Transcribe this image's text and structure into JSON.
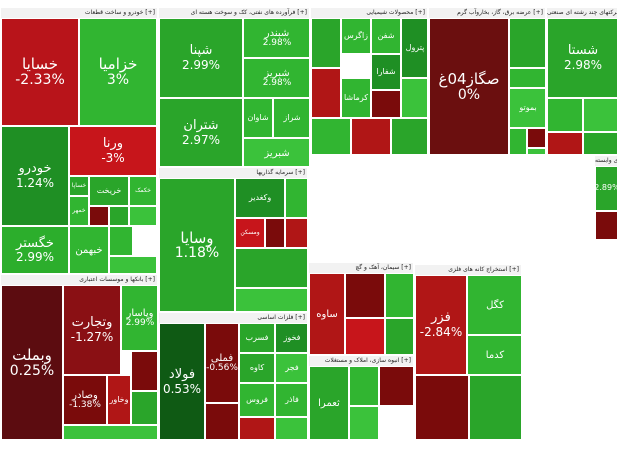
{
  "chart_data": {
    "type": "treemap",
    "title": "",
    "colors": {
      "up_strong": "#1f9e1f",
      "up_mid": "#2fb62f",
      "up_light": "#3fcb3f",
      "down_strong": "#7a0b0b",
      "down_mid": "#b01616",
      "down_light": "#d22a2a"
    },
    "sectors": [
      {
        "name": "خودرو و ساخت قطعات [+]",
        "tiles": [
          {
            "symbol": "خسایا",
            "change": "-2.33%",
            "color": "#b8141a"
          },
          {
            "symbol": "خزامیا",
            "change": "3%",
            "color": "#31b531"
          },
          {
            "symbol": "خودرو",
            "change": "1.24%",
            "color": "#1f8f24"
          },
          {
            "symbol": "ورنا",
            "change": "-3%",
            "color": "#c7151b"
          },
          {
            "symbol": "خگستر",
            "change": "2.99%",
            "color": "#2cae2c"
          },
          {
            "symbol": "خساپا",
            "change": "",
            "color": "#2aa52a"
          },
          {
            "symbol": "خریخت",
            "change": "",
            "color": "#2aa52a"
          },
          {
            "symbol": "خکمک",
            "change": "",
            "color": "#31b531"
          },
          {
            "symbol": "",
            "change": "",
            "color": "#7a0b0b"
          },
          {
            "symbol": "",
            "change": "",
            "color": "#2aa52a"
          },
          {
            "symbol": "خمهر",
            "change": "",
            "color": "#31b531"
          },
          {
            "symbol": "",
            "change": "",
            "color": "#3bc23b"
          },
          {
            "symbol": "",
            "change": "",
            "color": "#31b531"
          },
          {
            "symbol": "خبهمن",
            "change": "",
            "color": "#31b531"
          },
          {
            "symbol": "",
            "change": "",
            "color": "#3bc23b"
          }
        ]
      },
      {
        "name": "فرآورده های نفتی، کک و سوخت هسته ای [+]",
        "tiles": [
          {
            "symbol": "شپنا",
            "change": "2.99%",
            "color": "#2aa52a"
          },
          {
            "symbol": "شبندر",
            "change": "2.98%",
            "color": "#31b531"
          },
          {
            "symbol": "شبریز",
            "change": "2.98%",
            "color": "#31b531"
          },
          {
            "symbol": "شتران",
            "change": "2.97%",
            "color": "#2aa52a"
          },
          {
            "symbol": "شاوان",
            "change": "",
            "color": "#31b531"
          },
          {
            "symbol": "شراز",
            "change": "",
            "color": "#31b531"
          },
          {
            "symbol": "شبریز",
            "change": "",
            "color": "#3bc23b"
          }
        ]
      },
      {
        "name": "محصولات شیمیایی [+]",
        "tiles": [
          {
            "symbol": "",
            "change": "",
            "color": "#2aa52a"
          },
          {
            "symbol": "زاگرس",
            "change": "",
            "color": "#31b531"
          },
          {
            "symbol": "شفن",
            "change": "",
            "color": "#31b531"
          },
          {
            "symbol": "پترول",
            "change": "",
            "color": "#1f8f24"
          },
          {
            "symbol": "شفارا",
            "change": "",
            "color": "#1f8f24"
          },
          {
            "symbol": "کرماشا",
            "change": "",
            "color": "#31b531"
          },
          {
            "symbol": "",
            "change": "",
            "color": "#b01616"
          },
          {
            "symbol": "",
            "change": "",
            "color": "#7a0b0b"
          },
          {
            "symbol": "",
            "change": "",
            "color": "#3bc23b"
          },
          {
            "symbol": "",
            "change": "",
            "color": "#31b531"
          },
          {
            "symbol": "",
            "change": "",
            "color": "#b01616"
          },
          {
            "symbol": "",
            "change": "",
            "color": "#2aa52a"
          }
        ]
      },
      {
        "name": "عرضه برق، گاز، بخاروآب گرم [+]",
        "tiles": [
          {
            "symbol": "صگاز04غ",
            "change": "0%",
            "color": "#6b0f0f"
          },
          {
            "symbol": "",
            "change": "",
            "color": "#2aa52a"
          },
          {
            "symbol": "",
            "change": "",
            "color": "#31b531"
          },
          {
            "symbol": "بموتو",
            "change": "",
            "color": "#3bc23b"
          },
          {
            "symbol": "",
            "change": "",
            "color": "#31b531"
          },
          {
            "symbol": "",
            "change": "",
            "color": "#7a0b0b"
          },
          {
            "symbol": "",
            "change": "",
            "color": "#3bc23b"
          }
        ]
      },
      {
        "name": "فلزات اساسی [+]",
        "tiles": [
          {
            "symbol": "فولاد",
            "change": "0.53%",
            "color": "#0f5a14"
          },
          {
            "symbol": "فملی",
            "change": "-0.56%",
            "color": "#7a0b0b"
          },
          {
            "symbol": "فسرب",
            "change": "",
            "color": "#2aa52a"
          },
          {
            "symbol": "فخوز",
            "change": "",
            "color": "#1f8f24"
          },
          {
            "symbol": "کاوه",
            "change": "",
            "color": "#2aa52a"
          },
          {
            "symbol": "فجر",
            "change": "",
            "color": "#3bc23b"
          },
          {
            "symbol": "فروس",
            "change": "",
            "color": "#31b531"
          },
          {
            "symbol": "فاذر",
            "change": "",
            "color": "#31b531"
          },
          {
            "symbol": "",
            "change": "",
            "color": "#7a0b0b"
          },
          {
            "symbol": "",
            "change": "",
            "color": "#b01616"
          },
          {
            "symbol": "",
            "change": "",
            "color": "#3bc23b"
          }
        ]
      },
      {
        "name": "بانکها و موسسات اعتباری [+]",
        "tiles": [
          {
            "symbol": "وبملت",
            "change": "0.25%",
            "color": "#5c0c10"
          },
          {
            "symbol": "وتجارت",
            "change": "-1.27%",
            "color": "#8a1014"
          },
          {
            "symbol": "وپاسار",
            "change": "2.99%",
            "color": "#31b531"
          },
          {
            "symbol": "وصادر",
            "change": "-1.38%",
            "color": "#7a0b0b"
          },
          {
            "symbol": "وخاور",
            "change": "",
            "color": "#b01616"
          },
          {
            "symbol": "",
            "change": "",
            "color": "#7a0b0b"
          },
          {
            "symbol": "",
            "change": "",
            "color": "#2aa52a"
          },
          {
            "symbol": "",
            "change": "",
            "color": "#3bc23b"
          }
        ]
      },
      {
        "name": "سرمایه گذاریها [+]",
        "tiles": [
          {
            "symbol": "وسایا",
            "change": "1.18%",
            "color": "#2aa52a"
          },
          {
            "symbol": "وکغدیر",
            "change": "",
            "color": "#1f8f24"
          },
          {
            "symbol": "ومسکن",
            "change": "",
            "color": "#c7151b"
          },
          {
            "symbol": "",
            "change": "",
            "color": "#7a0b0b"
          },
          {
            "symbol": "",
            "change": "",
            "color": "#31b531"
          },
          {
            "symbol": "",
            "change": "",
            "color": "#b01616"
          },
          {
            "symbol": "",
            "change": "",
            "color": "#2aa52a"
          },
          {
            "symbol": "",
            "change": "",
            "color": "#3bc23b"
          }
        ]
      },
      {
        "name": "سیمان، آهک و گچ [+]",
        "tiles": [
          {
            "symbol": "ساوه",
            "change": "",
            "color": "#b01616"
          },
          {
            "symbol": "",
            "change": "",
            "color": "#7a0b0b"
          },
          {
            "symbol": "",
            "change": "",
            "color": "#31b531"
          },
          {
            "symbol": "",
            "change": "",
            "color": "#c7151b"
          },
          {
            "symbol": "",
            "change": "",
            "color": "#2aa52a"
          }
        ]
      },
      {
        "name": "انبوه سازی، املاک و مستغلات [+]",
        "tiles": [
          {
            "symbol": "ثعمرا",
            "change": "",
            "color": "#2aa52a"
          },
          {
            "symbol": "",
            "change": "",
            "color": "#31b531"
          },
          {
            "symbol": "",
            "change": "",
            "color": "#7a0b0b"
          },
          {
            "symbol": "",
            "change": "",
            "color": "#3bc23b"
          }
        ]
      },
      {
        "name": "استخراج کانه های فلزی [+]",
        "tiles": [
          {
            "symbol": "فزر",
            "change": "-2.84%",
            "color": "#b01616"
          },
          {
            "symbol": "کگل",
            "change": "",
            "color": "#31b531"
          },
          {
            "symbol": "کدما",
            "change": "",
            "color": "#31b531"
          },
          {
            "symbol": "",
            "change": "",
            "color": "#7a0b0b"
          },
          {
            "symbol": "",
            "change": "",
            "color": "#2aa52a"
          }
        ]
      },
      {
        "name": "شرکتهای چند رشته ای صنعتی [+]",
        "tiles": [
          {
            "symbol": "شستا",
            "change": "2.98%",
            "color": "#2aa52a"
          },
          {
            "symbol": "",
            "change": "",
            "color": "#31b531"
          },
          {
            "symbol": "",
            "change": "",
            "color": "#3bc23b"
          },
          {
            "symbol": "",
            "change": "",
            "color": "#b01616"
          },
          {
            "symbol": "",
            "change": "",
            "color": "#2aa52a"
          }
        ]
      },
      {
        "name": "رایانه و فعالیت‌های وابسته [+]",
        "tiles": [
          {
            "symbol": "",
            "change": "2.89%",
            "color": "#2aa52a"
          },
          {
            "symbol": "",
            "change": "",
            "color": "#7a0b0b"
          }
        ]
      }
    ]
  }
}
